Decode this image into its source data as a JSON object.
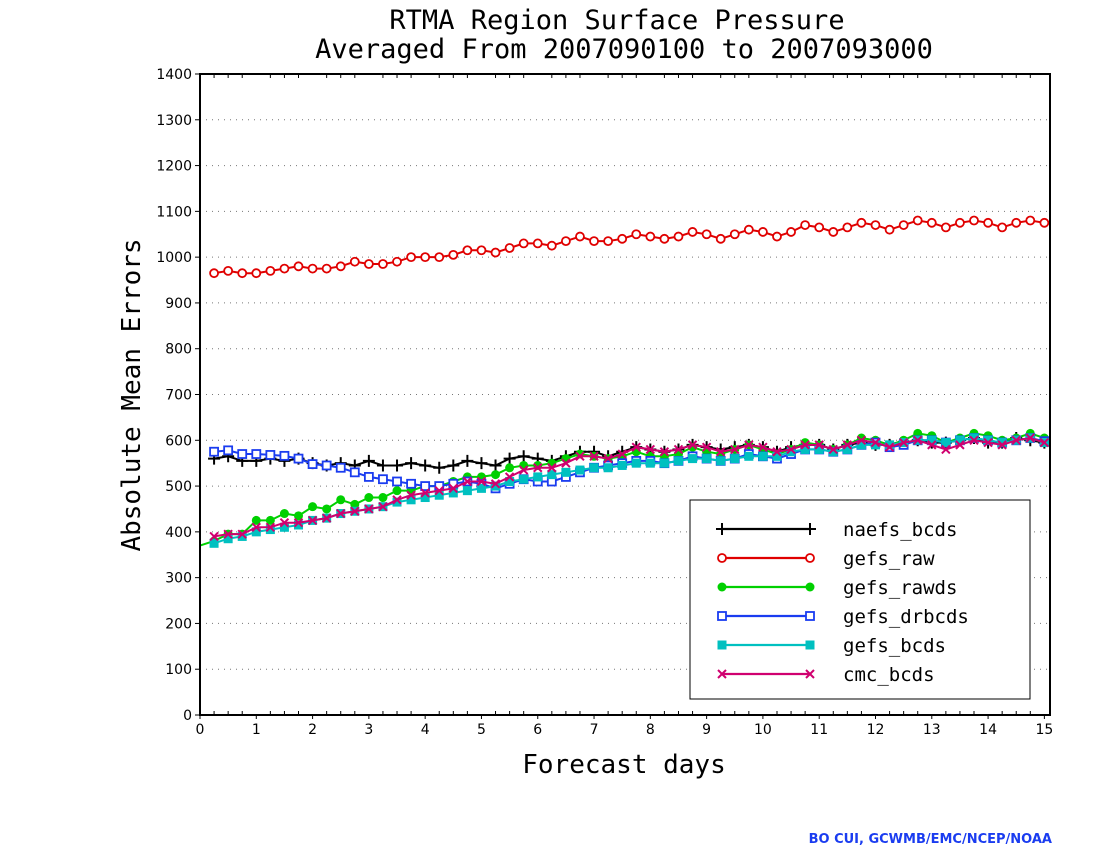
{
  "chart_data": {
    "type": "line",
    "title": "RTMA Region Surface Pressure",
    "subtitle": "Averaged From 2007090100 to 2007093000",
    "xlabel": "Forecast days",
    "ylabel": "Absolute Mean Errors",
    "xlim": [
      0,
      15.1
    ],
    "ylim": [
      0,
      1400
    ],
    "xticks": [
      "0",
      "1",
      "2",
      "3",
      "4",
      "5",
      "6",
      "7",
      "8",
      "9",
      "10",
      "11",
      "12",
      "13",
      "14",
      "15"
    ],
    "yticks": [
      "0",
      "100",
      "200",
      "300",
      "400",
      "500",
      "600",
      "700",
      "800",
      "900",
      "1000",
      "1100",
      "1200",
      "1300",
      "1400"
    ],
    "grid": true,
    "legend_position": "bottom-right",
    "x": [
      0.25,
      0.5,
      0.75,
      1.0,
      1.25,
      1.5,
      1.75,
      2.0,
      2.25,
      2.5,
      2.75,
      3.0,
      3.25,
      3.5,
      3.75,
      4.0,
      4.25,
      4.5,
      4.75,
      5.0,
      5.25,
      5.5,
      5.75,
      6.0,
      6.25,
      6.5,
      6.75,
      7.0,
      7.25,
      7.5,
      7.75,
      8.0,
      8.25,
      8.5,
      8.75,
      9.0,
      9.25,
      9.5,
      9.75,
      10.0,
      10.25,
      10.5,
      10.75,
      11.0,
      11.25,
      11.5,
      11.75,
      12.0,
      12.25,
      12.5,
      12.75,
      13.0,
      13.25,
      13.5,
      13.75,
      14.0,
      14.25,
      14.5,
      14.75,
      15.0
    ],
    "series": [
      {
        "name": "naefs_bcds",
        "color": "#000000",
        "marker": "plus",
        "values": [
          560,
          565,
          555,
          555,
          560,
          555,
          560,
          550,
          545,
          550,
          545,
          555,
          545,
          545,
          550,
          545,
          540,
          545,
          555,
          550,
          545,
          560,
          565,
          560,
          555,
          565,
          575,
          575,
          565,
          575,
          585,
          580,
          575,
          580,
          590,
          585,
          580,
          585,
          590,
          585,
          575,
          585,
          590,
          590,
          580,
          590,
          595,
          590,
          590,
          595,
          600,
          595,
          595,
          600,
          605,
          595,
          595,
          605,
          600,
          595
        ]
      },
      {
        "name": "gefs_raw",
        "color": "#e00000",
        "marker": "open-circle",
        "values": [
          965,
          970,
          965,
          965,
          970,
          975,
          980,
          975,
          975,
          980,
          990,
          985,
          985,
          990,
          1000,
          1000,
          1000,
          1005,
          1015,
          1015,
          1010,
          1020,
          1030,
          1030,
          1025,
          1035,
          1045,
          1035,
          1035,
          1040,
          1050,
          1045,
          1040,
          1045,
          1055,
          1050,
          1040,
          1050,
          1060,
          1055,
          1045,
          1055,
          1070,
          1065,
          1055,
          1065,
          1075,
          1070,
          1060,
          1070,
          1080,
          1075,
          1065,
          1075,
          1080,
          1075,
          1065,
          1075,
          1080,
          1075
        ]
      },
      {
        "name": "gefs_rawds",
        "color": "#00d000",
        "marker": "dot",
        "values": [
          380,
          395,
          395,
          425,
          425,
          440,
          435,
          455,
          450,
          470,
          460,
          475,
          475,
          490,
          490,
          500,
          500,
          510,
          520,
          520,
          525,
          540,
          545,
          545,
          550,
          560,
          570,
          565,
          560,
          565,
          575,
          565,
          565,
          570,
          585,
          575,
          570,
          580,
          590,
          580,
          570,
          580,
          595,
          590,
          580,
          590,
          605,
          600,
          590,
          600,
          615,
          610,
          595,
          605,
          615,
          610,
          600,
          605,
          615,
          605
        ]
      },
      {
        "name": "gefs_drbcds",
        "color": "#1a3cf0",
        "marker": "open-square",
        "values": [
          575,
          578,
          570,
          570,
          568,
          566,
          560,
          548,
          545,
          540,
          530,
          520,
          515,
          510,
          505,
          500,
          500,
          505,
          510,
          505,
          495,
          505,
          515,
          510,
          510,
          520,
          530,
          540,
          545,
          550,
          555,
          555,
          550,
          555,
          565,
          560,
          555,
          560,
          570,
          565,
          560,
          570,
          580,
          580,
          575,
          580,
          590,
          595,
          585,
          590,
          600,
          600,
          595,
          600,
          605,
          600,
          595,
          600,
          605,
          598
        ]
      },
      {
        "name": "gefs_bcds",
        "color": "#00c0c0",
        "marker": "filled-square",
        "values": [
          375,
          385,
          390,
          400,
          405,
          410,
          415,
          425,
          430,
          440,
          445,
          450,
          455,
          465,
          470,
          475,
          480,
          485,
          490,
          495,
          500,
          510,
          515,
          520,
          525,
          530,
          535,
          540,
          540,
          545,
          550,
          550,
          550,
          555,
          560,
          560,
          555,
          560,
          565,
          565,
          565,
          575,
          580,
          580,
          575,
          580,
          590,
          590,
          590,
          595,
          600,
          600,
          595,
          600,
          605,
          600,
          595,
          600,
          605,
          595
        ]
      },
      {
        "name": "cmc_bcds",
        "color": "#d0006f",
        "marker": "x",
        "values": [
          390,
          395,
          395,
          410,
          410,
          420,
          420,
          425,
          430,
          440,
          445,
          450,
          455,
          470,
          480,
          485,
          490,
          495,
          510,
          510,
          505,
          520,
          535,
          540,
          540,
          550,
          565,
          565,
          560,
          570,
          585,
          580,
          575,
          580,
          590,
          585,
          575,
          580,
          590,
          585,
          575,
          580,
          590,
          590,
          580,
          590,
          600,
          595,
          585,
          595,
          600,
          590,
          580,
          590,
          600,
          595,
          590,
          600,
          605,
          595
        ]
      }
    ]
  },
  "credit": "BO CUI, GCWMB/EMC/NCEP/NOAA"
}
